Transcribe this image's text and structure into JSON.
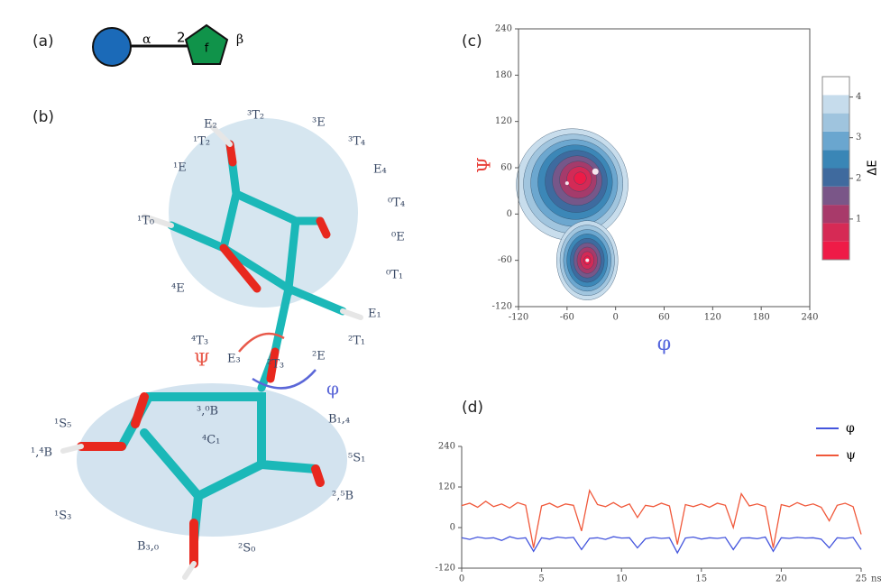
{
  "panel_labels": [
    "(a)",
    "(b)",
    "(c)",
    "(d)"
  ],
  "glycan": {
    "alpha": "α",
    "linkage": "2",
    "ring_label": "f",
    "beta": "β"
  },
  "top_ring_labels": [
    "E₂",
    "³T₂",
    "³E",
    "³T₄",
    "E₄",
    "⁰T₄",
    "⁰E",
    "⁰T₁",
    "E₁",
    "²T₁",
    "²E",
    "²T₃",
    "E₃",
    "⁴T₃",
    "⁴E",
    "¹T₀",
    "¹E",
    "¹T₂"
  ],
  "bottom_ring_labels": [
    "⁴C₁",
    "¹S₅",
    "¹,⁴B",
    "¹S₃",
    "B₃,₀",
    "²S₀",
    "²,⁵B",
    "⁵S₁",
    "B₁,₄",
    "³,⁰B"
  ],
  "torsion_labels": {
    "psi": "Ψ",
    "phi": "φ"
  },
  "chart_data": [
    {
      "type": "contour",
      "xlabel": "φ",
      "ylabel": "Ψ",
      "xlim": [
        -120,
        240
      ],
      "ylim": [
        -120,
        240
      ],
      "xticks": [
        -120,
        -60,
        0,
        60,
        120,
        180,
        240
      ],
      "yticks": [
        -120,
        -60,
        0,
        60,
        120,
        180,
        240
      ],
      "minima": [
        {
          "x": -25,
          "y": 55
        },
        {
          "x": -60,
          "y": 40
        },
        {
          "x": -35,
          "y": -60
        }
      ],
      "colorbar": {
        "label": "ΔE",
        "lim": [
          0,
          4.5
        ],
        "ticks": [
          1,
          2,
          3,
          4
        ],
        "colors": [
          "#ef1b47",
          "#d62a55",
          "#a83a6a",
          "#7a5688",
          "#3f6a9e",
          "#3a86b6",
          "#6aa6cf",
          "#9fc4de",
          "#c6dcec",
          "#ffffff"
        ]
      }
    },
    {
      "type": "line",
      "xlabel": "ns",
      "xlim": [
        0,
        25
      ],
      "ylim": [
        -120,
        240
      ],
      "xticks": [
        0,
        5,
        10,
        15,
        20,
        25
      ],
      "yticks": [
        -120,
        0,
        120,
        240
      ],
      "x": [
        0,
        0.5,
        1,
        1.5,
        2,
        2.5,
        3,
        3.5,
        4,
        4.5,
        5,
        5.5,
        6,
        6.5,
        7,
        7.5,
        8,
        8.5,
        9,
        9.5,
        10,
        10.5,
        11,
        11.5,
        12,
        12.5,
        13,
        13.5,
        14,
        14.5,
        15,
        15.5,
        16,
        16.5,
        17,
        17.5,
        18,
        18.5,
        19,
        19.5,
        20,
        20.5,
        21,
        21.5,
        22,
        22.5,
        23,
        23.5,
        24,
        24.5,
        25
      ],
      "series": [
        {
          "name": "φ",
          "color": "#4455dd",
          "values": [
            -30,
            -35,
            -28,
            -32,
            -30,
            -38,
            -27,
            -33,
            -30,
            -70,
            -30,
            -34,
            -28,
            -31,
            -29,
            -65,
            -32,
            -30,
            -35,
            -27,
            -31,
            -30,
            -60,
            -33,
            -29,
            -32,
            -30,
            -75,
            -31,
            -28,
            -34,
            -30,
            -32,
            -29,
            -65,
            -31,
            -30,
            -33,
            -28,
            -70,
            -30,
            -32,
            -29,
            -31,
            -30,
            -34,
            -60,
            -30,
            -32,
            -29,
            -65
          ]
        },
        {
          "name": "ψ",
          "color": "#f0583a",
          "values": [
            65,
            72,
            60,
            78,
            62,
            70,
            58,
            74,
            66,
            -60,
            64,
            72,
            60,
            70,
            66,
            -10,
            110,
            68,
            62,
            74,
            60,
            70,
            30,
            66,
            62,
            72,
            64,
            -50,
            68,
            62,
            70,
            60,
            72,
            66,
            0,
            100,
            64,
            70,
            62,
            -60,
            68,
            62,
            74,
            64,
            70,
            60,
            20,
            66,
            72,
            62,
            -20
          ]
        }
      ]
    }
  ]
}
